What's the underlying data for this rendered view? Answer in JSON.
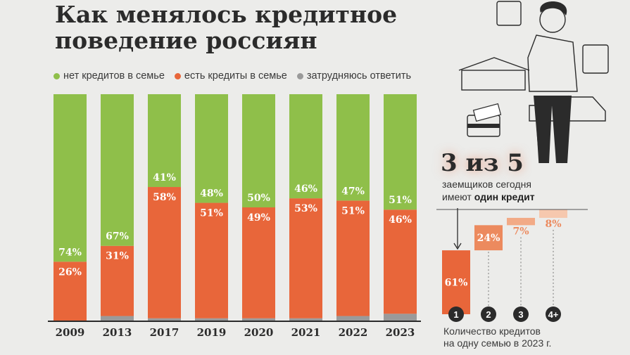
{
  "title": {
    "line1": "Как менялось кредитное",
    "line2": "поведение россиян"
  },
  "legend": [
    {
      "label": "нет кредитов в семье",
      "color": "#8fbf4a"
    },
    {
      "label": "есть кредиты в семье",
      "color": "#e8663a"
    },
    {
      "label": "затрудняюсь ответить",
      "color": "#9a9a9a"
    }
  ],
  "chart_data": [
    {
      "type": "bar",
      "stacked": true,
      "categories": [
        "2009",
        "2013",
        "2017",
        "2019",
        "2020",
        "2021",
        "2022",
        "2023"
      ],
      "series": [
        {
          "name": "есть кредиты в семье",
          "color": "#e8663a",
          "values": [
            26,
            31,
            58,
            51,
            49,
            53,
            51,
            46
          ],
          "labels": [
            "26%",
            "31%",
            "58%",
            "51%",
            "49%",
            "53%",
            "51%",
            "46%"
          ]
        },
        {
          "name": "нет кредитов в семье",
          "color": "#8fbf4a",
          "values": [
            74,
            67,
            41,
            48,
            50,
            46,
            47,
            51
          ],
          "labels": [
            "74%",
            "67%",
            "41%",
            "48%",
            "50%",
            "46%",
            "47%",
            "51%"
          ]
        },
        {
          "name": "затрудняюсь ответить",
          "color": "#9a9a9a",
          "values": [
            0,
            2,
            1,
            1,
            1,
            1,
            2,
            3
          ]
        }
      ],
      "ylim": [
        0,
        100
      ]
    },
    {
      "type": "bar",
      "waterfall": true,
      "categories": [
        "1",
        "2",
        "3",
        "4+"
      ],
      "values": [
        61,
        24,
        7,
        8
      ],
      "labels": [
        "61%",
        "24%",
        "7%",
        "8%"
      ],
      "colors": [
        "#e8663a",
        "#ec8a5e",
        "#f2aa86",
        "#f6c8ae"
      ],
      "caption": [
        "Количество кредитов",
        "на одну семью в 2023 г."
      ]
    }
  ],
  "callout": {
    "big": "3 из 5",
    "line1": "заемщиков сегодня",
    "line2_prefix": "имеют ",
    "line2_bold": "один кредит"
  }
}
